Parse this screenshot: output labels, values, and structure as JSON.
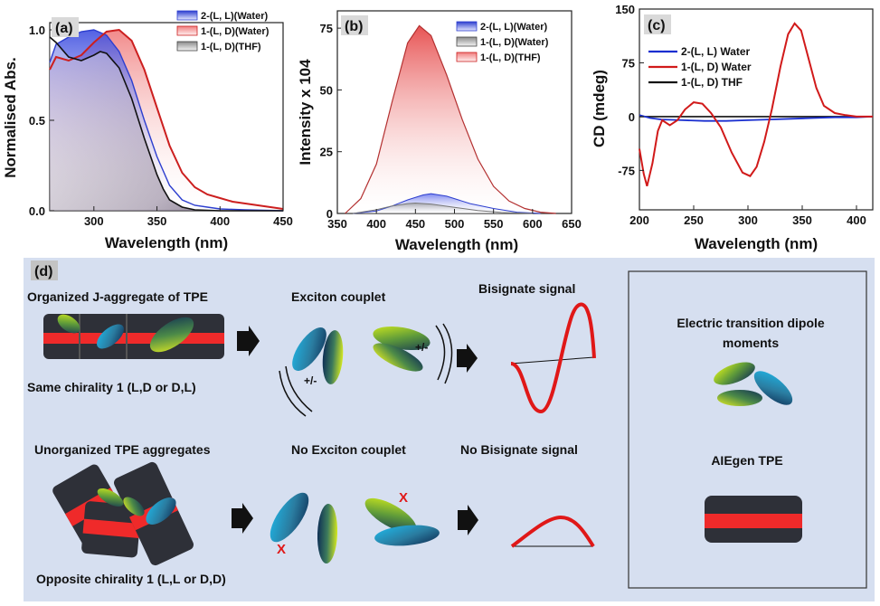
{
  "chart_data": [
    {
      "type": "area",
      "panel": "(a)",
      "xlabel": "Wavelength (nm)",
      "ylabel": "Normalised Abs.",
      "xlim": [
        265,
        450
      ],
      "ylim": [
        0,
        1.0
      ],
      "xticks": [
        "300",
        "350",
        "400",
        "450"
      ],
      "yticks": [
        "0.0",
        "0.5",
        "1.0"
      ],
      "legend": [
        "2-(L, L)(Water)",
        "1-(L, D)(Water)",
        "1-(L, D)(THF)"
      ],
      "series": [
        {
          "name": "2-(L, L)(Water)",
          "color": "#2d3ecf",
          "x": [
            265,
            270,
            280,
            290,
            300,
            310,
            320,
            330,
            340,
            350,
            360,
            370,
            380,
            390,
            400,
            420,
            450
          ],
          "y": [
            0.82,
            0.92,
            0.96,
            0.99,
            1.0,
            0.97,
            0.88,
            0.72,
            0.5,
            0.3,
            0.14,
            0.06,
            0.03,
            0.02,
            0.01,
            0.005,
            0.0
          ]
        },
        {
          "name": "1-(L, D)(Water)",
          "color": "#cc1f1f",
          "x": [
            265,
            270,
            280,
            290,
            300,
            310,
            320,
            330,
            340,
            350,
            360,
            370,
            380,
            390,
            400,
            410,
            420,
            430,
            440,
            450
          ],
          "y": [
            0.78,
            0.85,
            0.83,
            0.86,
            0.93,
            0.99,
            1.0,
            0.94,
            0.78,
            0.57,
            0.36,
            0.21,
            0.13,
            0.09,
            0.07,
            0.05,
            0.04,
            0.03,
            0.02,
            0.01
          ]
        },
        {
          "name": "1-(L, D)(THF)",
          "color": "#111111",
          "x": [
            265,
            270,
            280,
            290,
            300,
            305,
            310,
            320,
            330,
            340,
            350,
            355,
            360,
            370,
            380,
            400,
            450
          ],
          "y": [
            0.96,
            0.93,
            0.85,
            0.83,
            0.86,
            0.88,
            0.87,
            0.79,
            0.62,
            0.4,
            0.2,
            0.12,
            0.06,
            0.02,
            0.005,
            0.0,
            0.0
          ]
        }
      ]
    },
    {
      "type": "area",
      "panel": "(b)",
      "xlabel": "Wavelength (nm)",
      "ylabel": "Intensity x 104",
      "xlim": [
        350,
        650
      ],
      "ylim": [
        0,
        82
      ],
      "xticks": [
        "350",
        "400",
        "450",
        "500",
        "550",
        "600",
        "650"
      ],
      "yticks": [
        "0",
        "25",
        "50",
        "75"
      ],
      "legend": [
        "2-(L, L)(Water)",
        "1-(L, D)(Water)",
        "1-(L, D)(THF)"
      ],
      "series": [
        {
          "name": "2-(L, L)(Water)",
          "color": "#2d3ecf",
          "x": [
            370,
            400,
            420,
            440,
            460,
            470,
            490,
            520,
            550,
            580,
            610
          ],
          "y": [
            0,
            1,
            3,
            5.5,
            7.5,
            8,
            7,
            4,
            2,
            0.5,
            0
          ]
        },
        {
          "name": "1-(L, D)(Water)",
          "color": "#777777",
          "x": [
            370,
            400,
            420,
            440,
            450,
            470,
            500,
            530,
            560,
            600
          ],
          "y": [
            0,
            1.5,
            3,
            4,
            4.2,
            3.8,
            2.5,
            1.2,
            0.4,
            0
          ]
        },
        {
          "name": "1-(L, D)(THF)",
          "color": "#b33030",
          "x": [
            360,
            380,
            400,
            420,
            440,
            455,
            470,
            490,
            510,
            530,
            550,
            570,
            590,
            610,
            630
          ],
          "y": [
            0,
            6,
            20,
            45,
            69,
            76,
            72,
            56,
            38,
            22,
            11,
            5,
            2,
            0.5,
            0
          ]
        }
      ]
    },
    {
      "type": "line",
      "panel": "(c)",
      "xlabel": "Wavelength (nm)",
      "ylabel": "CD (mdeg)",
      "xlim": [
        200,
        415
      ],
      "ylim": [
        -130,
        150
      ],
      "xticks": [
        "200",
        "250",
        "300",
        "350",
        "400"
      ],
      "yticks": [
        "150",
        "75",
        "0",
        "-75"
      ],
      "legend": [
        "2-(L, L) Water",
        "1-(L, D) Water",
        "1-(L, D) THF"
      ],
      "series": [
        {
          "name": "2-(L, L) Water",
          "color": "#1a2fd0",
          "x": [
            200,
            210,
            220,
            240,
            260,
            280,
            300,
            320,
            340,
            360,
            380,
            400,
            415
          ],
          "y": [
            2,
            -2,
            -4,
            -5,
            -6,
            -6,
            -5,
            -4,
            -3,
            -2,
            -1,
            -1,
            0
          ]
        },
        {
          "name": "1-(L, D) Water",
          "color": "#d11a1a",
          "x": [
            200,
            204,
            207,
            212,
            217,
            221,
            228,
            235,
            242,
            250,
            258,
            266,
            275,
            285,
            295,
            302,
            308,
            315,
            322,
            330,
            337,
            343,
            349,
            356,
            363,
            370,
            380,
            390,
            400,
            408,
            415
          ],
          "y": [
            -45,
            -80,
            -97,
            -65,
            -20,
            -5,
            -12,
            -5,
            10,
            20,
            18,
            5,
            -15,
            -50,
            -78,
            -83,
            -70,
            -35,
            10,
            70,
            115,
            130,
            120,
            80,
            40,
            15,
            5,
            2,
            0,
            0,
            0
          ]
        },
        {
          "name": "1-(L, D) THF",
          "color": "#111111",
          "x": [
            200,
            220,
            250,
            300,
            350,
            400,
            415
          ],
          "y": [
            0,
            0,
            0,
            0,
            0,
            0,
            0
          ]
        }
      ]
    },
    {
      "type": "diagram",
      "panel": "(d)",
      "texts": {
        "organized": "Organized J-aggregate of TPE",
        "same_chirality": "Same chirality 1 (L,D or D,L)",
        "exciton": "Exciton couplet",
        "bisignate": "Bisignate signal",
        "unorganized": "Unorganized  TPE aggregates",
        "opposite_chirality": "Opposite chirality 1 (L,L or D,D)",
        "no_exciton": "No Exciton couplet",
        "no_bisignate": "No Bisignate signal",
        "electric_1": "Electric transition dipole",
        "electric_2": "moments",
        "aiegen": "AIEgen TPE",
        "pm1": "+/-",
        "pm2": "+/-",
        "x1": "X",
        "x2": "X"
      }
    }
  ]
}
